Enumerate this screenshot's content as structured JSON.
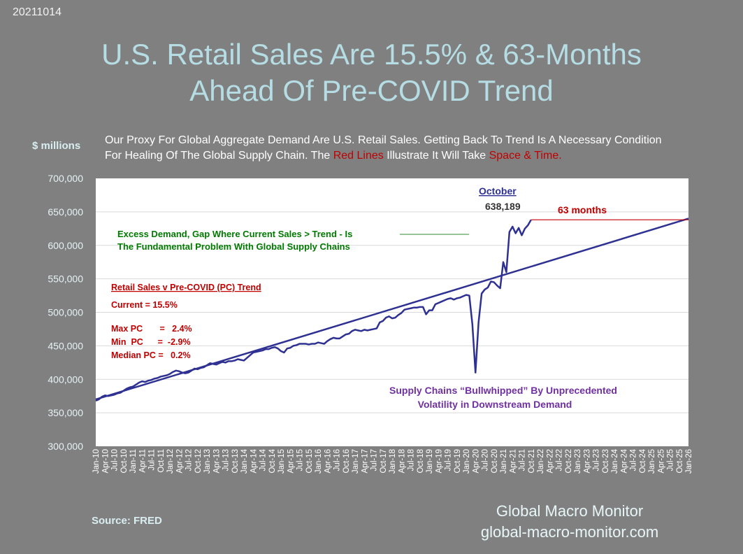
{
  "header": {
    "date": "20211014",
    "title_line1": "U.S. Retail Sales Are 15.5% & 63-Months",
    "title_line2": "Ahead Of Pre-COVID Trend",
    "y_unit": "$ millions",
    "description_part1": "Our Proxy For Global Aggregate Demand Are U.S. Retail Sales.  Getting Back To Trend Is A Necessary Condition For Healing Of The Global Supply Chain.  The ",
    "description_red1": "Red Lines",
    "description_part2": " Illustrate It Will Take ",
    "description_red2": "Space & Time."
  },
  "footer": {
    "source": "Source:  FRED",
    "brand_line1": "Global Macro Monitor",
    "brand_line2": "global-macro-monitor.com"
  },
  "annotations": {
    "october_label": "October",
    "latest_value": "638,189",
    "months_label": "63 months",
    "excess_line1": "Excess Demand, Gap Where Current Sales > Trend - Is",
    "excess_line2": "The Fundamental Problem  With Global Supply Chains",
    "stats_title": "Retail Sales v Pre-COVID (PC) Trend",
    "stats_current": "Current =  15.5%",
    "stats_max": "Max PC       =   2.4%",
    "stats_min": "Min  PC      =  -2.9%",
    "stats_median": "Median PC =   0.2%",
    "bullwhip_line1": "Supply Chains “Bullwhipped” By Unprecedented",
    "bullwhip_line2": "Volatility in Downstream Demand"
  },
  "colors": {
    "background": "#808080",
    "plot_background": "#ffffff",
    "series": "#2e3192",
    "red": "#c00000",
    "green": "#007a00",
    "purple": "#7030a0"
  },
  "chart_data": {
    "type": "line",
    "title": "U.S. Retail Sales Are 15.5% & 63-Months Ahead Of Pre-COVID Trend",
    "ylabel": "$ millions",
    "ylim": [
      300000,
      700000
    ],
    "yticks": [
      300000,
      350000,
      400000,
      450000,
      500000,
      550000,
      600000,
      650000,
      700000
    ],
    "ytick_labels": [
      "300,000",
      "350,000",
      "400,000",
      "450,000",
      "500,000",
      "550,000",
      "600,000",
      "650,000",
      "700,000"
    ],
    "xtick_labels": [
      "Jan-10",
      "Apr-10",
      "Jul-10",
      "Oct-10",
      "Jan-11",
      "Apr-11",
      "Jul-11",
      "Oct-11",
      "Jan-12",
      "Apr-12",
      "Jul-12",
      "Oct-12",
      "Jan-13",
      "Apr-13",
      "Jul-13",
      "Oct-13",
      "Jan-14",
      "Apr-14",
      "Jul-14",
      "Oct-14",
      "Jan-15",
      "Apr-15",
      "Jul-15",
      "Oct-15",
      "Jan-16",
      "Apr-16",
      "Jul-16",
      "Oct-16",
      "Jan-17",
      "Apr-17",
      "Jul-17",
      "Oct-17",
      "Jan-18",
      "Apr-18",
      "Jul-18",
      "Oct-18",
      "Jan-19",
      "Apr-19",
      "Jul-19",
      "Oct-19",
      "Jan-20",
      "Apr-20",
      "Jul-20",
      "Oct-20",
      "Jan-21",
      "Apr-21",
      "Jul-21",
      "Oct-21",
      "Jan-22",
      "Apr-22",
      "Jul-22",
      "Oct-22",
      "Jan-23",
      "Apr-23",
      "Jul-23",
      "Oct-23",
      "Jan-24",
      "Apr-24",
      "Jul-24",
      "Oct-24",
      "Jan-25",
      "Apr-25",
      "Jul-25",
      "Oct-25",
      "Jan-26"
    ],
    "series": [
      {
        "values": [
          [
            "Jan-10",
            368000
          ],
          [
            "Feb-10",
            370000
          ],
          [
            "Mar-10",
            374000
          ],
          [
            "Apr-10",
            376000
          ],
          [
            "May-10",
            375000
          ],
          [
            "Jun-10",
            376000
          ],
          [
            "Jul-10",
            377000
          ],
          [
            "Aug-10",
            379000
          ],
          [
            "Sep-10",
            380000
          ],
          [
            "Oct-10",
            383000
          ],
          [
            "Nov-10",
            386000
          ],
          [
            "Dec-10",
            388000
          ],
          [
            "Jan-11",
            389000
          ],
          [
            "Feb-11",
            392000
          ],
          [
            "Mar-11",
            395000
          ],
          [
            "Apr-11",
            397000
          ],
          [
            "May-11",
            396000
          ],
          [
            "Jun-11",
            398000
          ],
          [
            "Jul-11",
            399000
          ],
          [
            "Aug-11",
            401000
          ],
          [
            "Sep-11",
            402000
          ],
          [
            "Oct-11",
            404000
          ],
          [
            "Nov-11",
            405000
          ],
          [
            "Dec-11",
            406000
          ],
          [
            "Jan-12",
            408000
          ],
          [
            "Feb-12",
            411000
          ],
          [
            "Mar-12",
            413000
          ],
          [
            "Apr-12",
            412000
          ],
          [
            "May-12",
            410000
          ],
          [
            "Jun-12",
            409000
          ],
          [
            "Jul-12",
            410000
          ],
          [
            "Aug-12",
            413000
          ],
          [
            "Sep-12",
            416000
          ],
          [
            "Oct-12",
            415000
          ],
          [
            "Nov-12",
            417000
          ],
          [
            "Dec-12",
            418000
          ],
          [
            "Jan-13",
            421000
          ],
          [
            "Feb-13",
            424000
          ],
          [
            "Mar-13",
            423000
          ],
          [
            "Apr-13",
            422000
          ],
          [
            "May-13",
            424000
          ],
          [
            "Jun-13",
            426000
          ],
          [
            "Jul-13",
            425000
          ],
          [
            "Aug-13",
            427000
          ],
          [
            "Sep-13",
            427000
          ],
          [
            "Oct-13",
            428000
          ],
          [
            "Nov-13",
            430000
          ],
          [
            "Dec-13",
            429000
          ],
          [
            "Jan-14",
            428000
          ],
          [
            "Feb-14",
            432000
          ],
          [
            "Mar-14",
            436000
          ],
          [
            "Apr-14",
            440000
          ],
          [
            "May-14",
            441000
          ],
          [
            "Jun-14",
            442000
          ],
          [
            "Jul-14",
            443000
          ],
          [
            "Aug-14",
            445000
          ],
          [
            "Sep-14",
            445000
          ],
          [
            "Oct-14",
            447000
          ],
          [
            "Nov-14",
            448000
          ],
          [
            "Dec-14",
            446000
          ],
          [
            "Jan-15",
            442000
          ],
          [
            "Feb-15",
            440000
          ],
          [
            "Mar-15",
            446000
          ],
          [
            "Apr-15",
            447000
          ],
          [
            "May-15",
            450000
          ],
          [
            "Jun-15",
            451000
          ],
          [
            "Jul-15",
            453000
          ],
          [
            "Aug-15",
            453000
          ],
          [
            "Sep-15",
            453000
          ],
          [
            "Oct-15",
            452000
          ],
          [
            "Nov-15",
            453000
          ],
          [
            "Dec-15",
            453000
          ],
          [
            "Jan-16",
            455000
          ],
          [
            "Feb-16",
            454000
          ],
          [
            "Mar-16",
            453000
          ],
          [
            "Apr-16",
            457000
          ],
          [
            "May-16",
            460000
          ],
          [
            "Jun-16",
            462000
          ],
          [
            "Jul-16",
            461000
          ],
          [
            "Aug-16",
            461000
          ],
          [
            "Sep-16",
            464000
          ],
          [
            "Oct-16",
            467000
          ],
          [
            "Nov-16",
            468000
          ],
          [
            "Dec-16",
            472000
          ],
          [
            "Jan-17",
            474000
          ],
          [
            "Feb-17",
            473000
          ],
          [
            "Mar-17",
            472000
          ],
          [
            "Apr-17",
            474000
          ],
          [
            "May-17",
            473000
          ],
          [
            "Jun-17",
            474000
          ],
          [
            "Jul-17",
            475000
          ],
          [
            "Aug-17",
            476000
          ],
          [
            "Sep-17",
            485000
          ],
          [
            "Oct-17",
            487000
          ],
          [
            "Nov-17",
            492000
          ],
          [
            "Dec-17",
            494000
          ],
          [
            "Jan-18",
            491000
          ],
          [
            "Feb-18",
            492000
          ],
          [
            "Mar-18",
            496000
          ],
          [
            "Apr-18",
            499000
          ],
          [
            "May-18",
            504000
          ],
          [
            "Jun-18",
            505000
          ],
          [
            "Jul-18",
            506000
          ],
          [
            "Aug-18",
            507000
          ],
          [
            "Sep-18",
            507000
          ],
          [
            "Oct-18",
            508000
          ],
          [
            "Nov-18",
            508000
          ],
          [
            "Dec-18",
            497000
          ],
          [
            "Jan-19",
            503000
          ],
          [
            "Feb-19",
            503000
          ],
          [
            "Mar-19",
            512000
          ],
          [
            "Apr-19",
            514000
          ],
          [
            "May-19",
            516000
          ],
          [
            "Jun-19",
            518000
          ],
          [
            "Jul-19",
            520000
          ],
          [
            "Aug-19",
            521000
          ],
          [
            "Sep-19",
            519000
          ],
          [
            "Oct-19",
            521000
          ],
          [
            "Nov-19",
            522000
          ],
          [
            "Dec-19",
            524000
          ],
          [
            "Jan-20",
            526000
          ],
          [
            "Feb-20",
            525000
          ],
          [
            "Mar-20",
            482000
          ],
          [
            "Apr-20",
            410000
          ],
          [
            "May-20",
            485000
          ],
          [
            "Jun-20",
            528000
          ],
          [
            "Jul-20",
            534000
          ],
          [
            "Aug-20",
            537000
          ],
          [
            "Sep-20",
            546000
          ],
          [
            "Oct-20",
            545000
          ],
          [
            "Nov-20",
            540000
          ],
          [
            "Dec-20",
            536000
          ],
          [
            "Jan-21",
            575000
          ],
          [
            "Feb-21",
            560000
          ],
          [
            "Mar-21",
            620000
          ],
          [
            "Apr-21",
            628000
          ],
          [
            "May-21",
            618000
          ],
          [
            "Jun-21",
            626000
          ],
          [
            "Jul-21",
            615000
          ],
          [
            "Aug-21",
            625000
          ],
          [
            "Sep-21",
            630000
          ],
          [
            "Oct-21",
            638189
          ]
        ]
      },
      {
        "values": [
          [
            "Jan-10",
            370000
          ],
          [
            "Jan-26",
            640000
          ]
        ]
      }
    ],
    "gap_line": {
      "from": "Oct-21",
      "to": "Jan-26",
      "value": 638189
    }
  }
}
